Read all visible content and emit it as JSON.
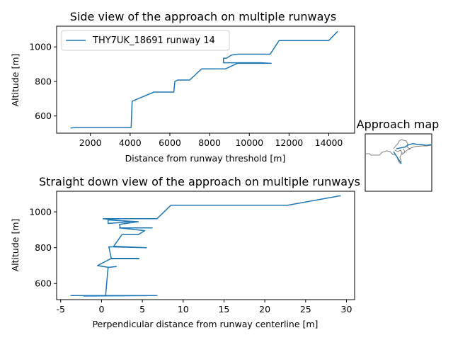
{
  "chart_data": [
    {
      "type": "line",
      "title": "Side view of the approach on multiple runways",
      "xlabel": "Distance from runway threshold [m]",
      "ylabel": "Altitude [m]",
      "xlim": [
        300,
        15300
      ],
      "ylim": [
        500,
        1120
      ],
      "xticks": [
        2000,
        4000,
        6000,
        8000,
        10000,
        12000,
        14000
      ],
      "yticks": [
        600,
        800,
        1000
      ],
      "legend": "upper-left",
      "grid": false,
      "series": [
        {
          "name": "THY7UK_18691 runway 14",
          "color": "#1f77b4",
          "x": [
            1000,
            1300,
            4050,
            4100,
            5200,
            6200,
            6250,
            6400,
            7000,
            7600,
            8800,
            9400,
            11100,
            10600,
            8700,
            8700,
            8850,
            9100,
            9400,
            11050,
            11500,
            14000,
            14450
          ],
          "y": [
            530,
            533,
            533,
            685,
            738,
            738,
            800,
            808,
            808,
            873,
            873,
            905,
            905,
            908,
            908,
            935,
            935,
            953,
            958,
            958,
            1037,
            1037,
            1090
          ]
        }
      ]
    },
    {
      "type": "line",
      "title": "Straight down view of the approach on multiple runways",
      "xlabel": "Perpendicular distance from runway centerline [m]",
      "ylabel": "Altitude [m]",
      "xlim": [
        -5.5,
        31
      ],
      "ylim": [
        510,
        1115
      ],
      "xticks": [
        -5,
        0,
        5,
        10,
        15,
        20,
        25,
        30
      ],
      "yticks": [
        600,
        800,
        1000
      ],
      "grid": false,
      "series": [
        {
          "name": "",
          "color": "#1f77b4",
          "x": [
            -3.8,
            6.8,
            -2.2,
            0.5,
            0.8,
            1.8,
            0.9,
            -0.5,
            1.2,
            4.5,
            4.6,
            1.2,
            0.9,
            5.5,
            1.5,
            2.5,
            4.5,
            5.3,
            2.2,
            6.2,
            2.3,
            2.2,
            4.5,
            0.8,
            0.8,
            3.5,
            0.2,
            6.8,
            8.5,
            22.8,
            29.3
          ],
          "y": [
            533,
            533,
            530,
            533,
            690,
            695,
            690,
            700,
            740,
            740,
            738,
            738,
            805,
            800,
            808,
            873,
            873,
            895,
            910,
            910,
            910,
            930,
            945,
            955,
            935,
            945,
            962,
            962,
            1037,
            1037,
            1090
          ]
        }
      ]
    },
    {
      "type": "map",
      "title": "Approach map",
      "series": [
        {
          "name": "",
          "color": "#1f77b4",
          "x": [
            0,
            0.1,
            0.15,
            0.2,
            0.25,
            0.3,
            0.35,
            0.42
          ],
          "y": [
            0,
            0.02,
            0.05,
            0.06,
            0.05,
            0.05,
            0.04,
            0.05
          ]
        }
      ]
    }
  ]
}
